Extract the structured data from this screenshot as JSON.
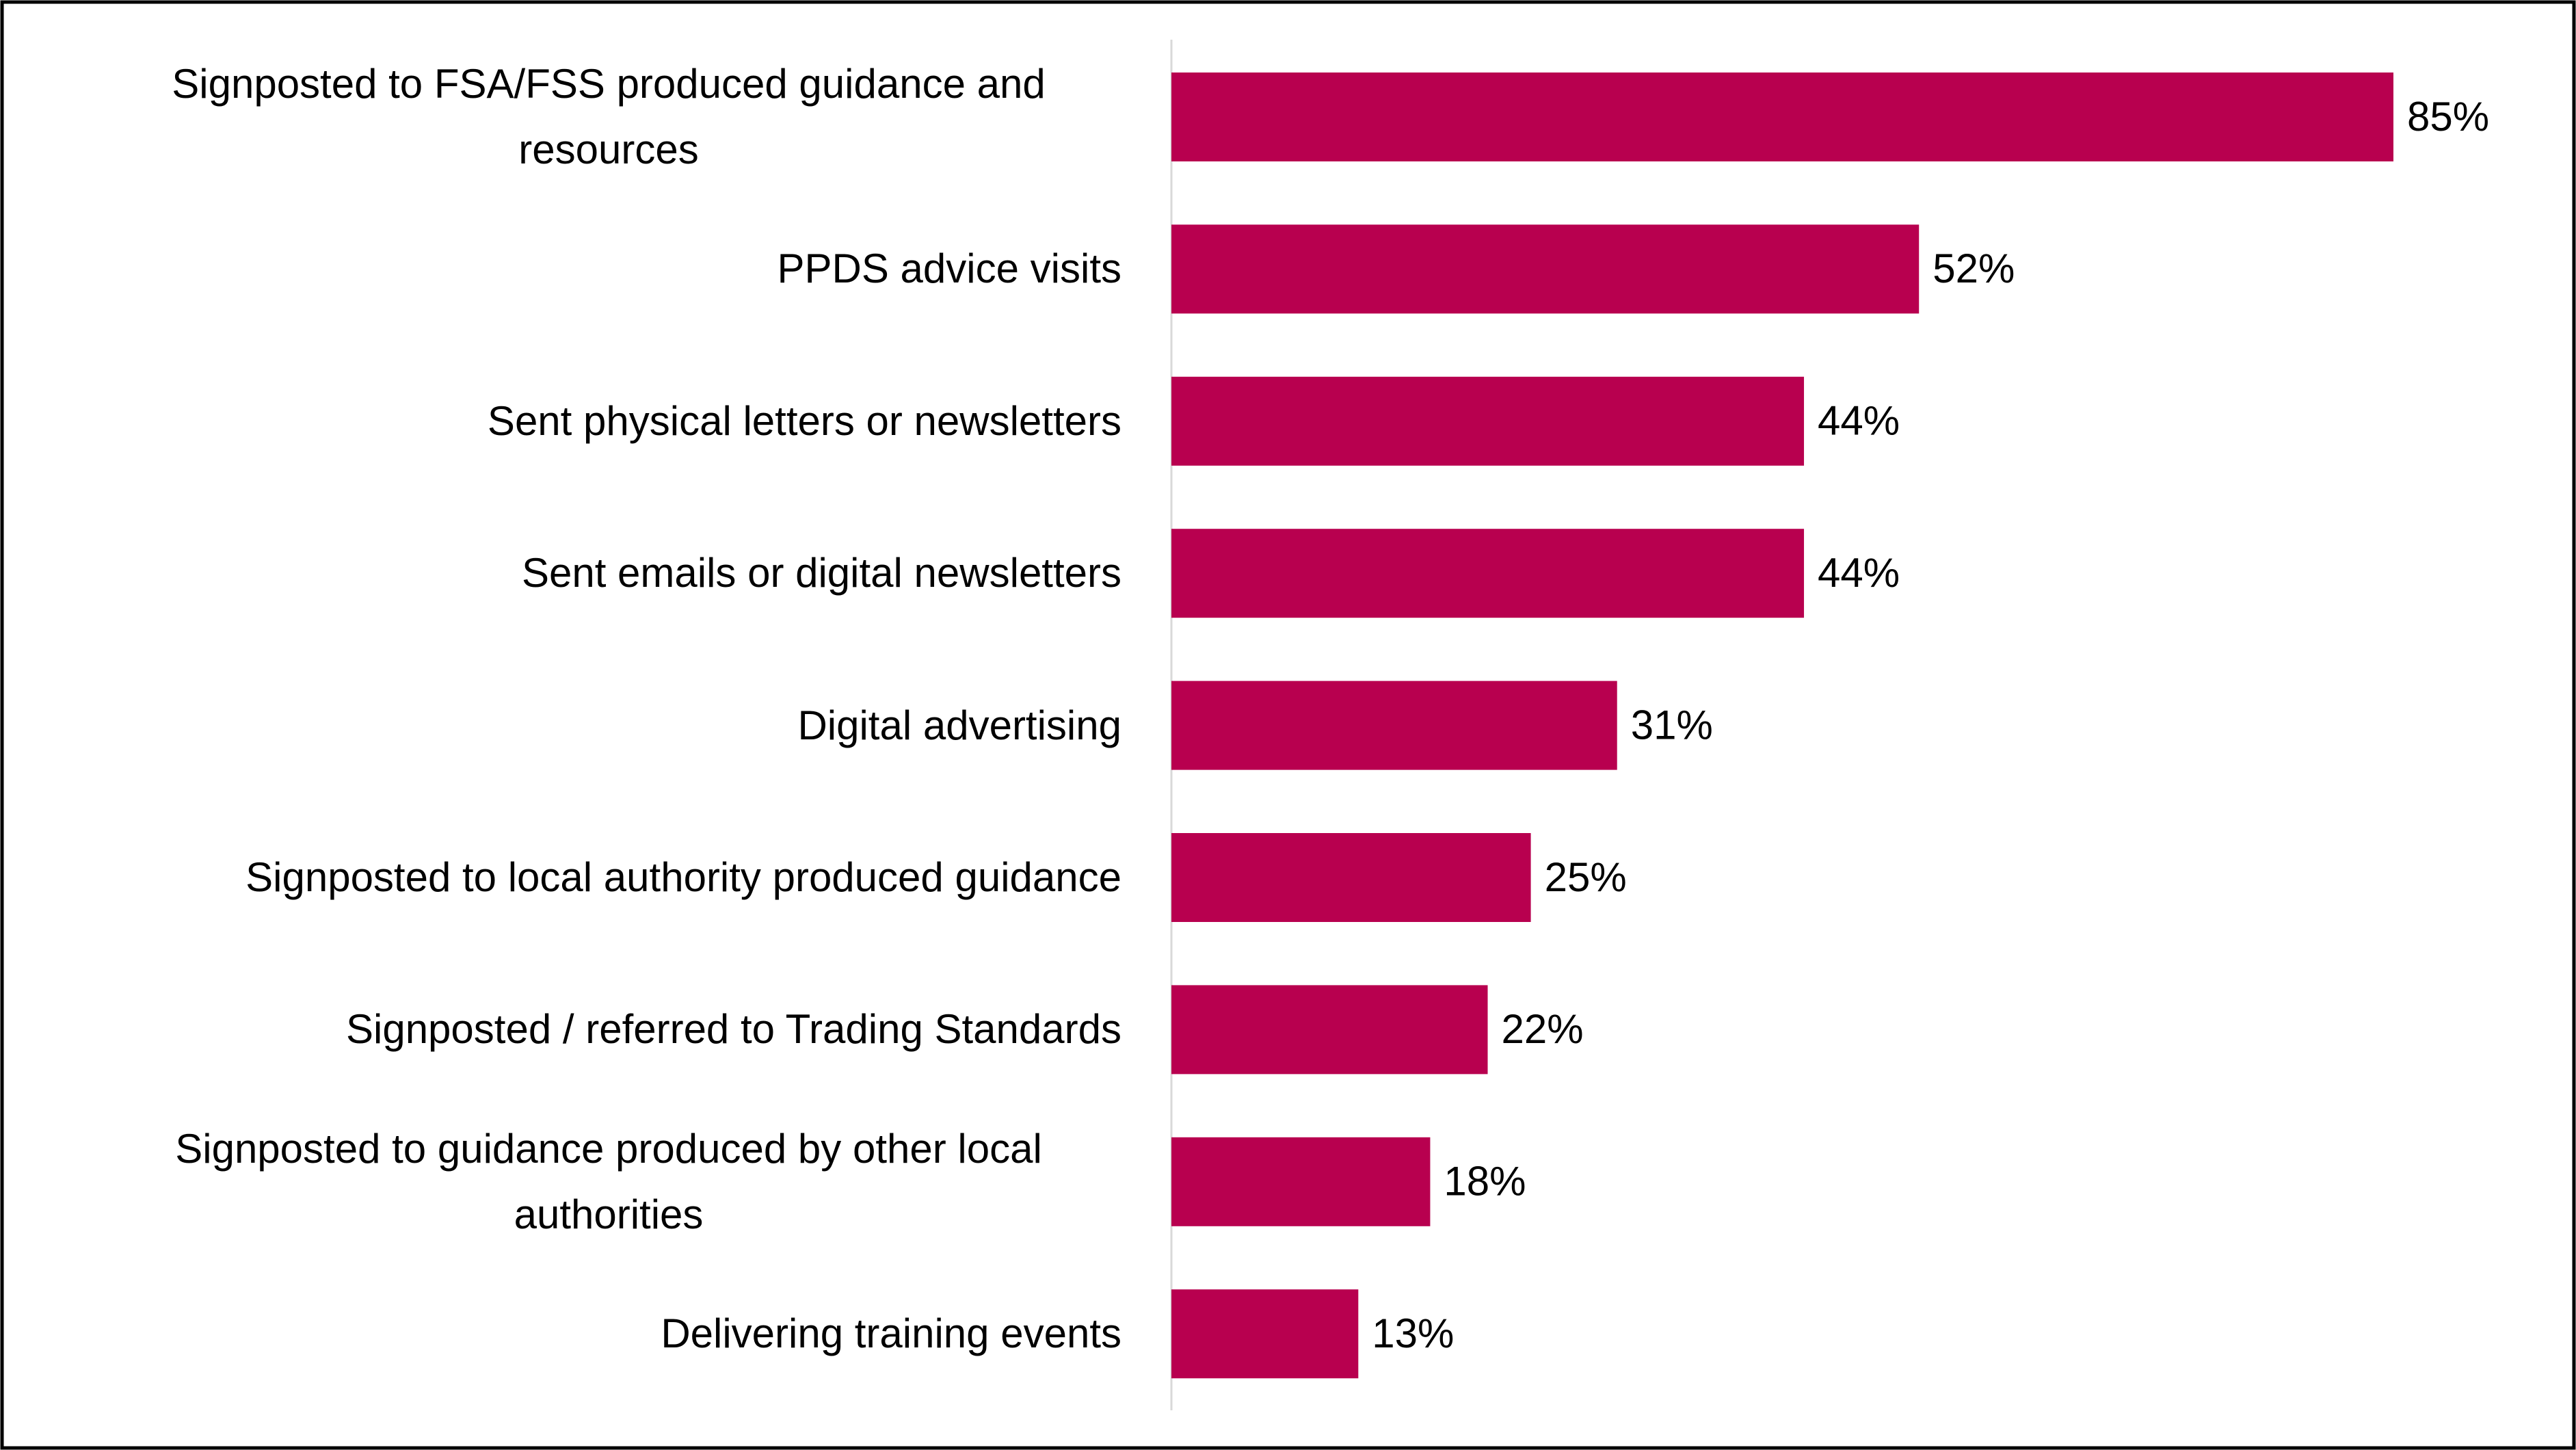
{
  "chart_data": {
    "type": "bar",
    "orientation": "horizontal",
    "categories": [
      "Signposted to FSA/FSS produced guidance and resources",
      "PPDS advice visits",
      "Sent physical letters or newsletters",
      "Sent emails or digital newsletters",
      "Digital advertising",
      "Signposted to local authority produced guidance",
      "Signposted / referred to Trading Standards",
      "Signposted to guidance produced by other local authorities",
      "Delivering training events"
    ],
    "values": [
      85,
      52,
      44,
      44,
      31,
      25,
      22,
      18,
      13
    ],
    "value_labels": [
      "85%",
      "52%",
      "44%",
      "44%",
      "31%",
      "25%",
      "22%",
      "18%",
      "13%"
    ],
    "color": "#b8004f"
  }
}
